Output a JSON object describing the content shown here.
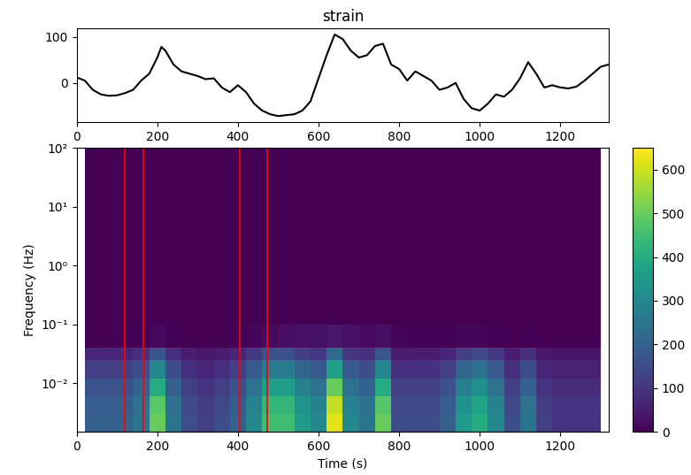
{
  "chart_data": [
    {
      "type": "line",
      "title": "strain",
      "color": "black",
      "x": [
        0,
        20,
        40,
        60,
        80,
        100,
        120,
        140,
        160,
        180,
        200,
        210,
        220,
        240,
        260,
        280,
        300,
        320,
        340,
        360,
        380,
        400,
        420,
        440,
        460,
        480,
        500,
        520,
        540,
        560,
        580,
        600,
        620,
        640,
        660,
        680,
        700,
        720,
        740,
        760,
        780,
        800,
        820,
        840,
        860,
        880,
        900,
        920,
        940,
        960,
        980,
        1000,
        1020,
        1040,
        1060,
        1080,
        1100,
        1120,
        1140,
        1160,
        1180,
        1200,
        1220,
        1240,
        1260,
        1280,
        1300,
        1320
      ],
      "values": [
        12,
        5,
        -15,
        -25,
        -28,
        -27,
        -22,
        -15,
        5,
        20,
        55,
        78,
        70,
        40,
        25,
        20,
        15,
        8,
        10,
        -10,
        -20,
        -5,
        -20,
        -45,
        -60,
        -68,
        -72,
        -70,
        -68,
        -60,
        -40,
        10,
        60,
        105,
        95,
        70,
        55,
        60,
        80,
        85,
        40,
        30,
        5,
        25,
        15,
        5,
        -15,
        -10,
        0,
        -35,
        -55,
        -60,
        -45,
        -25,
        -30,
        -15,
        10,
        45,
        20,
        -10,
        -5,
        -10,
        -12,
        -8,
        5,
        20,
        35,
        40
      ],
      "xlim": [
        0,
        1320
      ],
      "xticks": [
        0,
        200,
        400,
        600,
        800,
        1000,
        1200
      ],
      "ylim": [
        -85,
        118
      ],
      "yticks": [
        0,
        100
      ]
    },
    {
      "type": "heatmap",
      "x_label": "Time (s)",
      "y_label": "Frequency (Hz)",
      "log": "y",
      "time_edges": [
        20,
        60,
        100,
        140,
        180,
        220,
        260,
        300,
        340,
        380,
        420,
        460,
        500,
        540,
        580,
        620,
        660,
        700,
        740,
        780,
        820,
        860,
        900,
        940,
        980,
        1020,
        1060,
        1100,
        1140,
        1180,
        1220,
        1260,
        1300
      ],
      "frequency_edges": [
        0.0015,
        0.003,
        0.006,
        0.012,
        0.025,
        0.04,
        0.1,
        100
      ],
      "cells": [
        [
          200,
          200,
          200,
          250,
          500,
          250,
          150,
          120,
          150,
          200,
          300,
          450,
          450,
          350,
          300,
          620,
          300,
          250,
          500,
          150,
          150,
          150,
          200,
          350,
          400,
          300,
          150,
          250,
          120,
          100,
          100,
          100
        ],
        [
          190,
          190,
          190,
          240,
          480,
          240,
          140,
          115,
          140,
          190,
          285,
          430,
          430,
          330,
          285,
          590,
          285,
          240,
          475,
          140,
          140,
          140,
          190,
          330,
          380,
          285,
          140,
          240,
          115,
          95,
          95,
          95
        ],
        [
          160,
          160,
          160,
          200,
          400,
          200,
          120,
          95,
          120,
          160,
          240,
          360,
          360,
          280,
          240,
          500,
          240,
          200,
          400,
          120,
          120,
          120,
          160,
          280,
          320,
          240,
          120,
          200,
          95,
          80,
          80,
          80
        ],
        [
          120,
          120,
          120,
          150,
          300,
          150,
          90,
          70,
          90,
          120,
          180,
          270,
          270,
          210,
          180,
          370,
          180,
          150,
          300,
          90,
          90,
          90,
          120,
          210,
          240,
          180,
          90,
          150,
          70,
          60,
          60,
          60
        ],
        [
          70,
          70,
          70,
          90,
          175,
          90,
          50,
          40,
          50,
          70,
          105,
          160,
          160,
          120,
          105,
          220,
          105,
          90,
          175,
          50,
          50,
          50,
          70,
          120,
          140,
          105,
          50,
          90,
          40,
          35,
          35,
          35
        ],
        [
          0,
          0,
          0,
          5,
          15,
          5,
          0,
          0,
          0,
          5,
          10,
          20,
          25,
          30,
          30,
          40,
          30,
          20,
          25,
          10,
          5,
          5,
          5,
          10,
          10,
          5,
          0,
          5,
          0,
          0,
          0,
          0
        ],
        [
          0,
          0,
          0,
          0,
          0,
          0,
          0,
          0,
          0,
          0,
          0,
          0,
          0,
          0,
          0,
          0,
          0,
          0,
          0,
          0,
          0,
          0,
          0,
          0,
          0,
          0,
          0,
          0,
          0,
          0,
          0,
          0
        ]
      ],
      "xlim": [
        0,
        1320
      ],
      "xticks": [
        0,
        200,
        400,
        600,
        800,
        1000,
        1200
      ],
      "ylim": [
        0.0015,
        100
      ],
      "yticks": [
        {
          "value": 0.01,
          "label": "10⁻²"
        },
        {
          "value": 0.1,
          "label": "10⁻¹"
        },
        {
          "value": 1,
          "label": "10⁰"
        },
        {
          "value": 10,
          "label": "10¹"
        },
        {
          "value": 100,
          "label": "10²"
        }
      ],
      "colorbar_range": [
        0,
        650
      ],
      "colorbar_ticks": [
        0,
        100,
        200,
        300,
        400,
        500,
        600
      ],
      "events": {
        "x": [
          120,
          165,
          405,
          473
        ],
        "color": "red"
      }
    }
  ]
}
